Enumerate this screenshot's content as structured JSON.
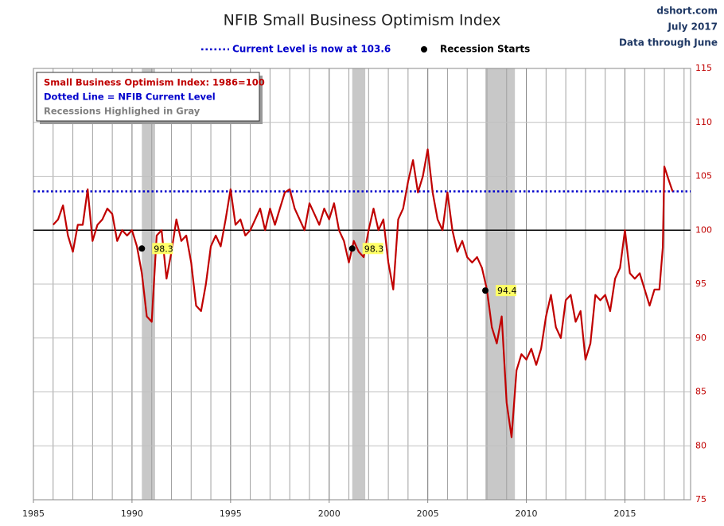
{
  "chart_data": {
    "type": "line",
    "title": "NFIB Small Business Optimism Index",
    "source": [
      "dshort.com",
      "July 2017",
      "Data through June"
    ],
    "notes": [
      {
        "text": "Small Business Optimism Index: 1986=100",
        "color": "#c00000"
      },
      {
        "text": "Dotted Line = NFIB Current Level",
        "color": "#0000cc"
      },
      {
        "text": "Recessions Highlighed in Gray",
        "color": "#808080"
      }
    ],
    "x": [
      1986.0,
      1986.25,
      1986.5,
      1986.75,
      1987.0,
      1987.25,
      1987.5,
      1987.75,
      1988.0,
      1988.25,
      1988.5,
      1988.75,
      1989.0,
      1989.25,
      1989.5,
      1989.75,
      1990.0,
      1990.25,
      1990.5,
      1990.75,
      1991.0,
      1991.25,
      1991.5,
      1991.75,
      1992.0,
      1992.25,
      1992.5,
      1992.75,
      1993.0,
      1993.25,
      1993.5,
      1993.75,
      1994.0,
      1994.25,
      1994.5,
      1994.75,
      1995.0,
      1995.25,
      1995.5,
      1995.75,
      1996.0,
      1996.25,
      1996.5,
      1996.75,
      1997.0,
      1997.25,
      1997.5,
      1997.75,
      1998.0,
      1998.25,
      1998.5,
      1998.75,
      1999.0,
      1999.25,
      1999.5,
      1999.75,
      2000.0,
      2000.25,
      2000.5,
      2000.75,
      2001.0,
      2001.25,
      2001.5,
      2001.75,
      2002.0,
      2002.25,
      2002.5,
      2002.75,
      2003.0,
      2003.25,
      2003.5,
      2003.75,
      2004.0,
      2004.25,
      2004.5,
      2004.75,
      2005.0,
      2005.25,
      2005.5,
      2005.75,
      2006.0,
      2006.25,
      2006.5,
      2006.75,
      2007.0,
      2007.25,
      2007.5,
      2007.75,
      2008.0,
      2008.25,
      2008.5,
      2008.75,
      2009.0,
      2009.25,
      2009.5,
      2009.75,
      2010.0,
      2010.25,
      2010.5,
      2010.75,
      2011.0,
      2011.25,
      2011.5,
      2011.75,
      2012.0,
      2012.25,
      2012.5,
      2012.75,
      2013.0,
      2013.25,
      2013.5,
      2013.75,
      2014.0,
      2014.25,
      2014.5,
      2014.75,
      2015.0,
      2015.25,
      2015.5,
      2015.75,
      2016.0,
      2016.25,
      2016.5,
      2016.75,
      2016.92,
      2017.0,
      2017.25,
      2017.42
    ],
    "series": [
      {
        "color": "#c00000",
        "values": [
          100.5,
          101,
          102.3,
          99.5,
          98,
          100.5,
          100.5,
          103.8,
          99,
          100.5,
          101,
          102,
          101.5,
          99,
          100,
          99.5,
          100,
          98.5,
          96,
          92,
          91.5,
          99.5,
          100,
          95.5,
          98,
          101,
          99,
          99.5,
          97,
          93,
          92.5,
          95,
          98.5,
          99.5,
          98.5,
          101,
          103.8,
          100.5,
          101,
          99.5,
          100,
          101,
          102,
          100,
          102,
          100.5,
          102,
          103.5,
          103.8,
          102,
          101,
          100,
          102.5,
          101.5,
          100.5,
          102,
          101,
          102.5,
          100,
          99,
          97,
          99,
          98,
          97.5,
          100,
          102,
          100,
          101,
          97,
          94.5,
          101,
          102,
          104.5,
          106.5,
          103.5,
          105,
          107.5,
          103.5,
          101,
          100,
          103.5,
          100,
          98,
          99,
          97.5,
          97,
          97.5,
          96.5,
          94.5,
          91,
          89.5,
          92,
          84,
          80.8,
          87,
          88.5,
          88,
          89,
          87.5,
          89,
          92,
          94,
          91,
          90,
          93.5,
          94,
          91.5,
          92.5,
          88,
          89.5,
          94,
          93.5,
          94,
          92.5,
          95.5,
          96.5,
          100,
          96,
          95.5,
          96,
          94.5,
          93,
          94.5,
          94.5,
          98.4,
          105.9,
          104.5,
          103.6
        ]
      }
    ],
    "reference_lines": [
      {
        "value": 103.6,
        "label": "Current Level is now at 103.6",
        "color": "#0000cc",
        "style": "dotted"
      },
      {
        "value": 100,
        "color": "#000000",
        "style": "solid"
      }
    ],
    "recessions": {
      "label": "Recession Starts",
      "color": "#c8c8c8",
      "spans": [
        [
          1990.5,
          1991.17
        ],
        [
          2001.17,
          2001.83
        ],
        [
          2007.92,
          2009.42
        ]
      ],
      "start_x": [
        1990.5,
        2001.17,
        2007.92
      ],
      "start_values": [
        98.3,
        98.3,
        94.4
      ]
    },
    "xlim": [
      1985,
      2018.33
    ],
    "xticks": [
      1985,
      1990,
      1995,
      2000,
      2005,
      2010,
      2015
    ],
    "xgrid_step": 1,
    "ylim": [
      75,
      115
    ],
    "yticks": [
      75,
      80,
      85,
      90,
      95,
      100,
      105,
      110,
      115
    ],
    "grid": true
  }
}
